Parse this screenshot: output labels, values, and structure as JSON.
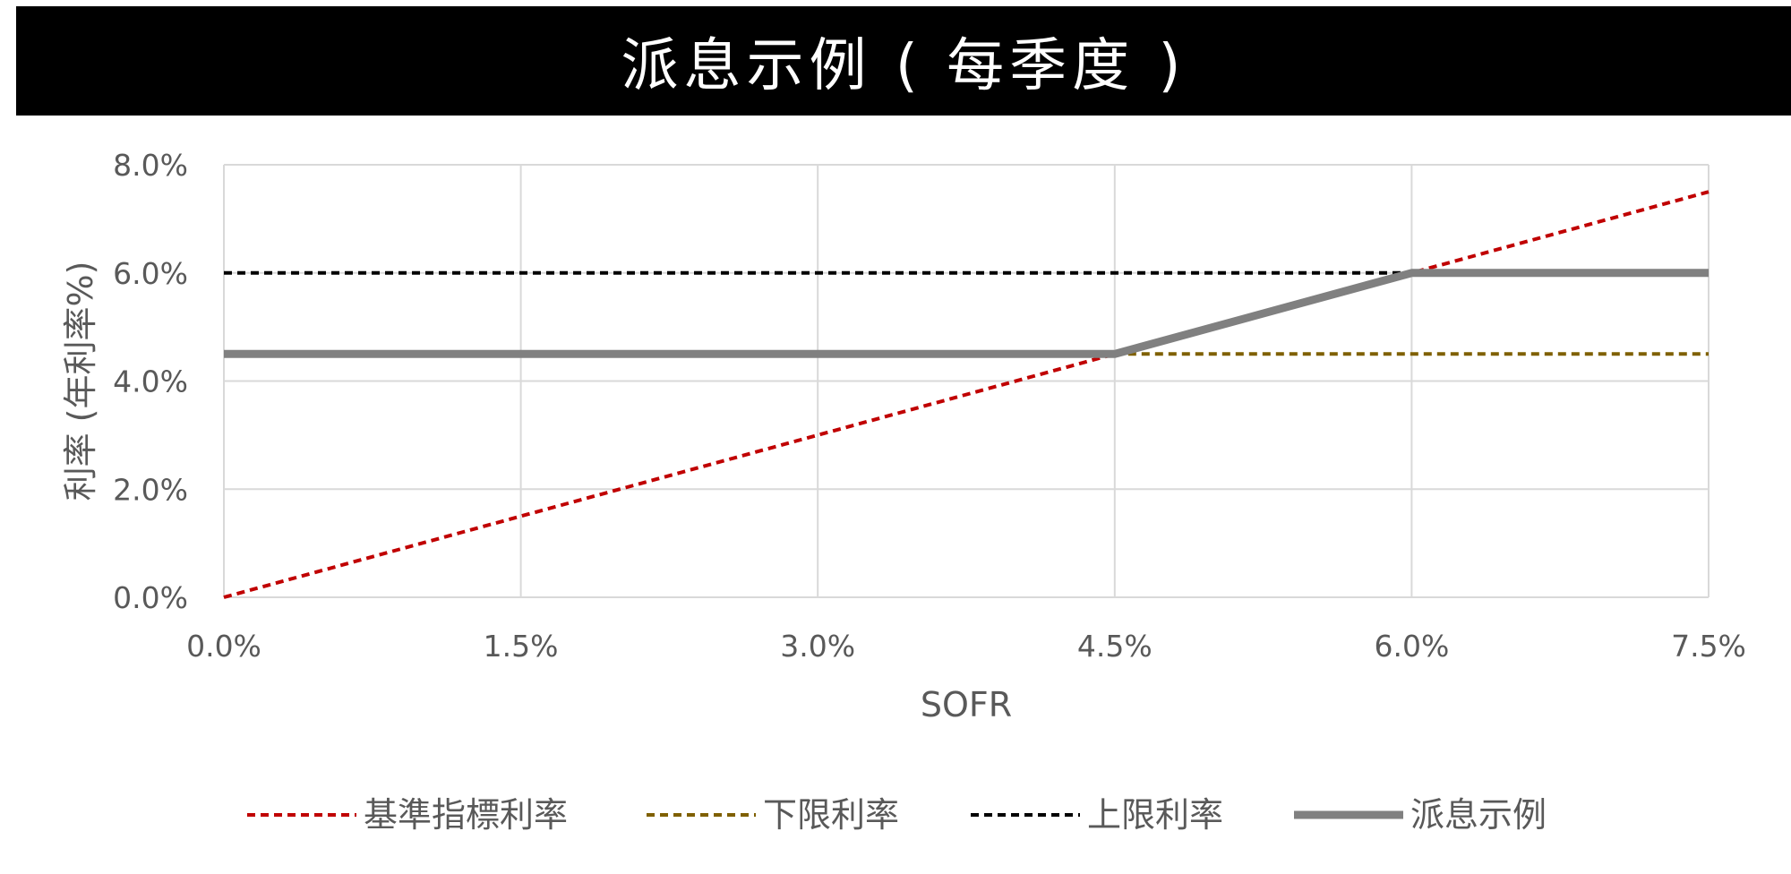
{
  "chart_data": {
    "type": "line",
    "title": "派息示例 ( 每季度 )",
    "xlabel": "SOFR",
    "ylabel": "利率 (年利率%)",
    "xlim": [
      0,
      7.5
    ],
    "ylim": [
      0,
      8
    ],
    "x_ticks": [
      "0.0%",
      "1.5%",
      "3.0%",
      "4.5%",
      "6.0%",
      "7.5%"
    ],
    "y_ticks": [
      "0.0%",
      "2.0%",
      "4.0%",
      "6.0%",
      "8.0%"
    ],
    "grid": true,
    "legend_position": "bottom",
    "series": [
      {
        "name": "基準指標利率",
        "color": "#C00000",
        "style": "dashed",
        "points": [
          [
            0,
            0
          ],
          [
            7.5,
            7.5
          ]
        ]
      },
      {
        "name": "下限利率",
        "color": "#7F6000",
        "style": "dashed",
        "points": [
          [
            4.5,
            4.5
          ],
          [
            7.5,
            4.5
          ]
        ]
      },
      {
        "name": "上限利率",
        "color": "#000000",
        "style": "dashed",
        "points": [
          [
            0,
            6
          ],
          [
            6,
            6
          ]
        ]
      },
      {
        "name": "派息示例",
        "color": "#808080",
        "style": "solid",
        "points": [
          [
            0,
            4.5
          ],
          [
            4.5,
            4.5
          ],
          [
            6,
            6
          ],
          [
            7.5,
            6
          ]
        ]
      }
    ]
  }
}
